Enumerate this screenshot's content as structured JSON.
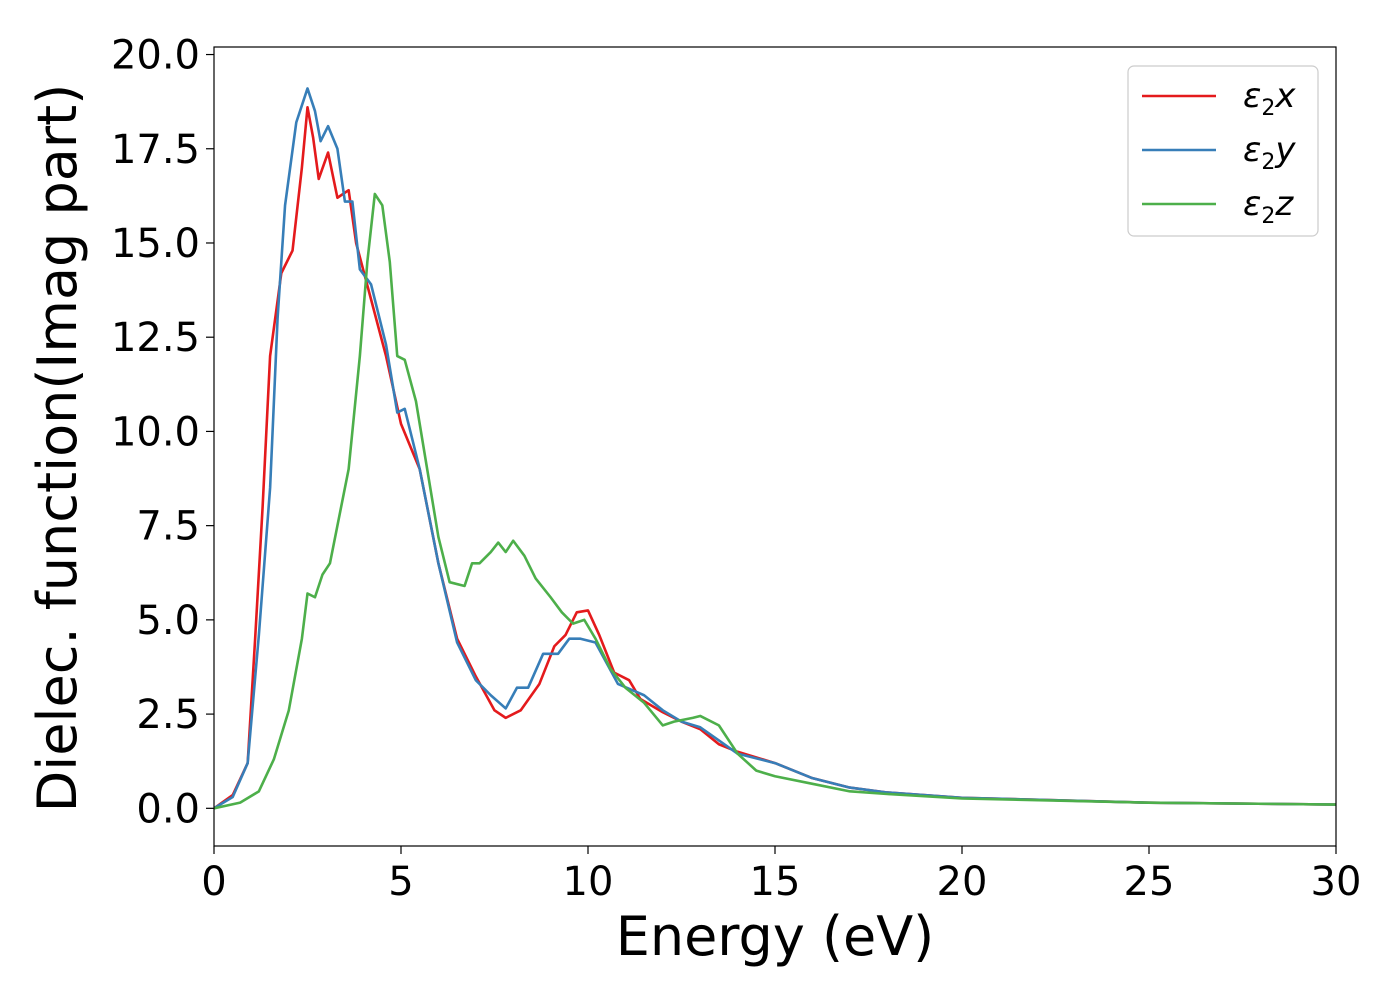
{
  "chart_data": {
    "type": "line",
    "xlabel": "Energy (eV)",
    "ylabel": "Dielec. function(Imag part)",
    "xlim": [
      0,
      30
    ],
    "ylim": [
      -1,
      20.2
    ],
    "xticks": [
      0,
      5,
      10,
      15,
      20,
      25,
      30
    ],
    "xtick_labels": [
      "0",
      "5",
      "10",
      "15",
      "20",
      "25",
      "30"
    ],
    "yticks": [
      0,
      2.5,
      5,
      7.5,
      10,
      12.5,
      15,
      17.5,
      20
    ],
    "ytick_labels": [
      "0.0",
      "2.5",
      "5.0",
      "7.5",
      "10.0",
      "12.5",
      "15.0",
      "17.5",
      "20.0"
    ],
    "grid": false,
    "legend_position": "top-right",
    "series": [
      {
        "name": "ε2x",
        "symbol": "ε",
        "subscript": "2",
        "suffix": "x",
        "color": "#e41a1c",
        "points": [
          [
            0,
            0
          ],
          [
            0.5,
            0.35
          ],
          [
            0.9,
            1.2
          ],
          [
            1.1,
            4.5
          ],
          [
            1.3,
            8
          ],
          [
            1.5,
            12
          ],
          [
            1.8,
            14.2
          ],
          [
            2.1,
            14.8
          ],
          [
            2.35,
            17
          ],
          [
            2.5,
            18.6
          ],
          [
            2.65,
            17.8
          ],
          [
            2.8,
            16.7
          ],
          [
            3.05,
            17.4
          ],
          [
            3.3,
            16.2
          ],
          [
            3.6,
            16.4
          ],
          [
            3.8,
            15
          ],
          [
            4.2,
            13.5
          ],
          [
            4.6,
            12
          ],
          [
            5.0,
            10.2
          ],
          [
            5.5,
            9
          ],
          [
            6.0,
            6.5
          ],
          [
            6.5,
            4.5
          ],
          [
            7.0,
            3.5
          ],
          [
            7.5,
            2.6
          ],
          [
            7.8,
            2.4
          ],
          [
            8.2,
            2.6
          ],
          [
            8.7,
            3.3
          ],
          [
            9.1,
            4.3
          ],
          [
            9.4,
            4.6
          ],
          [
            9.7,
            5.2
          ],
          [
            10.0,
            5.25
          ],
          [
            10.3,
            4.6
          ],
          [
            10.7,
            3.6
          ],
          [
            11.1,
            3.4
          ],
          [
            11.4,
            2.9
          ],
          [
            12.0,
            2.55
          ],
          [
            12.5,
            2.3
          ],
          [
            13.0,
            2.1
          ],
          [
            13.5,
            1.7
          ],
          [
            14.0,
            1.5
          ],
          [
            15.0,
            1.2
          ],
          [
            16.0,
            0.8
          ],
          [
            17.0,
            0.55
          ],
          [
            18.0,
            0.42
          ],
          [
            20.0,
            0.28
          ],
          [
            25.0,
            0.15
          ],
          [
            30.0,
            0.1
          ]
        ]
      },
      {
        "name": "ε2y",
        "symbol": "ε",
        "subscript": "2",
        "suffix": "y",
        "color": "#377eb8",
        "points": [
          [
            0,
            0
          ],
          [
            0.5,
            0.3
          ],
          [
            0.9,
            1.2
          ],
          [
            1.2,
            4.6
          ],
          [
            1.5,
            8.5
          ],
          [
            1.7,
            13
          ],
          [
            1.9,
            16
          ],
          [
            2.2,
            18.2
          ],
          [
            2.5,
            19.1
          ],
          [
            2.7,
            18.5
          ],
          [
            2.85,
            17.7
          ],
          [
            3.05,
            18.1
          ],
          [
            3.3,
            17.5
          ],
          [
            3.5,
            16.1
          ],
          [
            3.7,
            16.1
          ],
          [
            3.9,
            14.3
          ],
          [
            4.2,
            13.9
          ],
          [
            4.6,
            12.3
          ],
          [
            4.9,
            10.5
          ],
          [
            5.1,
            10.6
          ],
          [
            5.5,
            9
          ],
          [
            6.0,
            6.5
          ],
          [
            6.5,
            4.4
          ],
          [
            7.0,
            3.4
          ],
          [
            7.4,
            3.0
          ],
          [
            7.8,
            2.65
          ],
          [
            8.1,
            3.2
          ],
          [
            8.4,
            3.2
          ],
          [
            8.8,
            4.1
          ],
          [
            9.2,
            4.1
          ],
          [
            9.5,
            4.5
          ],
          [
            9.8,
            4.5
          ],
          [
            10.2,
            4.4
          ],
          [
            10.8,
            3.3
          ],
          [
            11.5,
            3.0
          ],
          [
            12.0,
            2.6
          ],
          [
            12.5,
            2.3
          ],
          [
            13.0,
            2.15
          ],
          [
            13.5,
            1.8
          ],
          [
            14.0,
            1.45
          ],
          [
            15.0,
            1.2
          ],
          [
            16.0,
            0.8
          ],
          [
            17.0,
            0.55
          ],
          [
            18.0,
            0.42
          ],
          [
            20.0,
            0.28
          ],
          [
            25.0,
            0.15
          ],
          [
            30.0,
            0.1
          ]
        ]
      },
      {
        "name": "ε2z",
        "symbol": "ε",
        "subscript": "2",
        "suffix": "z",
        "color": "#4daf4a",
        "points": [
          [
            0,
            0
          ],
          [
            0.7,
            0.15
          ],
          [
            1.2,
            0.45
          ],
          [
            1.6,
            1.3
          ],
          [
            2.0,
            2.6
          ],
          [
            2.35,
            4.5
          ],
          [
            2.5,
            5.7
          ],
          [
            2.7,
            5.6
          ],
          [
            2.9,
            6.2
          ],
          [
            3.1,
            6.5
          ],
          [
            3.3,
            7.5
          ],
          [
            3.6,
            9
          ],
          [
            3.9,
            12
          ],
          [
            4.1,
            14.5
          ],
          [
            4.3,
            16.3
          ],
          [
            4.5,
            16
          ],
          [
            4.7,
            14.5
          ],
          [
            4.9,
            12
          ],
          [
            5.1,
            11.9
          ],
          [
            5.4,
            10.8
          ],
          [
            5.7,
            9
          ],
          [
            6.0,
            7.2
          ],
          [
            6.3,
            6
          ],
          [
            6.7,
            5.9
          ],
          [
            6.9,
            6.5
          ],
          [
            7.1,
            6.5
          ],
          [
            7.4,
            6.8
          ],
          [
            7.6,
            7.05
          ],
          [
            7.8,
            6.8
          ],
          [
            8.0,
            7.1
          ],
          [
            8.3,
            6.7
          ],
          [
            8.6,
            6.1
          ],
          [
            9.0,
            5.6
          ],
          [
            9.3,
            5.2
          ],
          [
            9.6,
            4.9
          ],
          [
            9.9,
            5.0
          ],
          [
            10.2,
            4.5
          ],
          [
            10.6,
            3.7
          ],
          [
            11.0,
            3.2
          ],
          [
            11.5,
            2.8
          ],
          [
            12.0,
            2.2
          ],
          [
            12.3,
            2.3
          ],
          [
            12.8,
            2.4
          ],
          [
            13.0,
            2.45
          ],
          [
            13.5,
            2.2
          ],
          [
            14.0,
            1.45
          ],
          [
            14.5,
            1.0
          ],
          [
            15.0,
            0.85
          ],
          [
            16.0,
            0.65
          ],
          [
            17.0,
            0.45
          ],
          [
            18.0,
            0.38
          ],
          [
            20.0,
            0.26
          ],
          [
            25.0,
            0.15
          ],
          [
            30.0,
            0.1
          ]
        ]
      }
    ]
  }
}
